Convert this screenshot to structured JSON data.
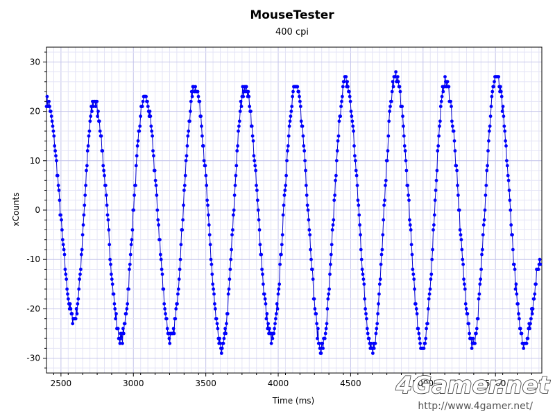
{
  "chart_data": {
    "type": "scatter",
    "title": "MouseTester",
    "subtitle": "400 cpi",
    "xlabel": "Time (ms)",
    "ylabel": "xCounts",
    "xlim": [
      2400,
      5820
    ],
    "ylim": [
      -33,
      33
    ],
    "x_ticks": [
      2500,
      3000,
      3500,
      4000,
      4500,
      5000,
      5500
    ],
    "y_ticks": [
      -30,
      -20,
      -10,
      0,
      10,
      20,
      30
    ],
    "grid": true,
    "legend": "none",
    "series_color": "#0000ff",
    "line_color": "#0000cc",
    "waveform": {
      "period_ms": 347,
      "peak_times_ms": [
        2730,
        3080,
        3425,
        3770,
        4120,
        4465,
        4810,
        5155,
        5505
      ],
      "peak_values": [
        22,
        23,
        25,
        25,
        25,
        26,
        27,
        26,
        27
      ],
      "trough_times_ms": [
        2590,
        2915,
        3260,
        3610,
        3955,
        4300,
        4650,
        5000,
        5345,
        5700
      ],
      "trough_values": [
        -22,
        -26,
        -26,
        -28,
        -26,
        -28,
        -28,
        -28,
        -27,
        -27
      ]
    },
    "points": []
  },
  "watermark": {
    "text": "4Gamer.net",
    "url": "http://www.4gamer.net/"
  }
}
